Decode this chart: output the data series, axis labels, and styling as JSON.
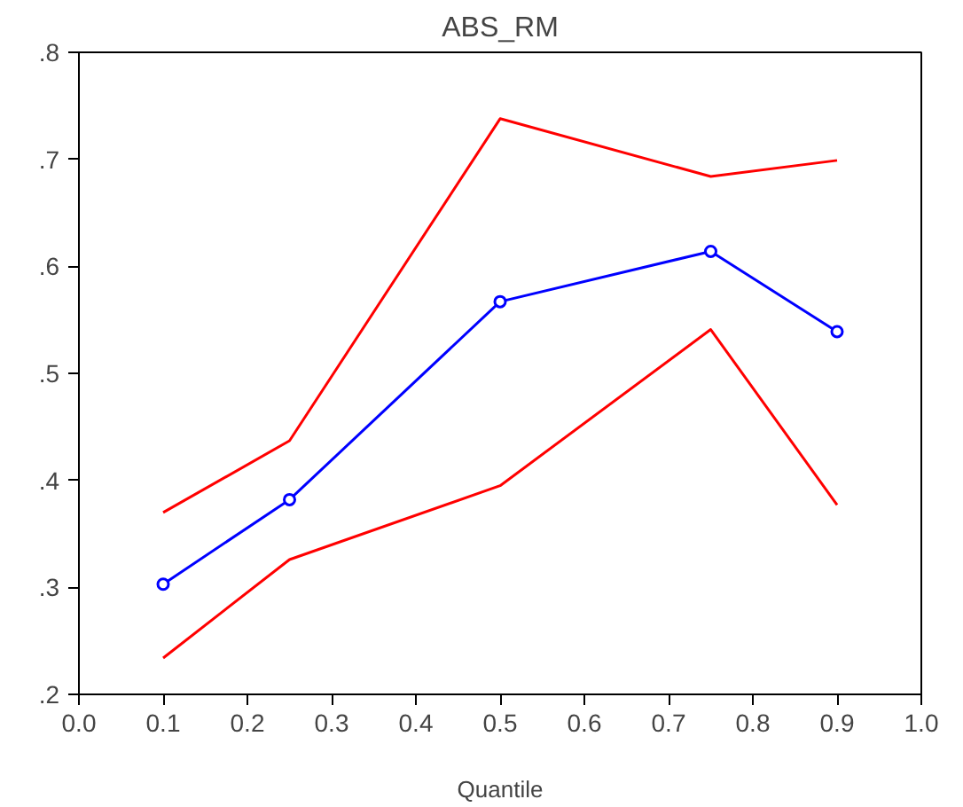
{
  "chart_data": {
    "type": "line",
    "title": "ABS_RM",
    "xlabel": "Quantile",
    "x": [
      0.1,
      0.25,
      0.5,
      0.75,
      0.9
    ],
    "series": [
      {
        "color": "#0000ff",
        "marker": "circle",
        "values": [
          0.303,
          0.382,
          0.567,
          0.614,
          0.539
        ]
      },
      {
        "color": "#ff0000",
        "marker": "none",
        "values": [
          0.37,
          0.437,
          0.738,
          0.684,
          0.699
        ]
      },
      {
        "color": "#ff0000",
        "marker": "none",
        "values": [
          0.234,
          0.326,
          0.395,
          0.541,
          0.377
        ]
      }
    ],
    "xlim": [
      0,
      1
    ],
    "ylim": [
      0.2,
      0.8
    ],
    "xticks": [
      {
        "value": 0,
        "label": "0.0"
      },
      {
        "value": 0.1,
        "label": "0.1"
      },
      {
        "value": 0.2,
        "label": "0.2"
      },
      {
        "value": 0.3,
        "label": "0.3"
      },
      {
        "value": 0.4,
        "label": "0.4"
      },
      {
        "value": 0.5,
        "label": "0.5"
      },
      {
        "value": 0.6,
        "label": "0.6"
      },
      {
        "value": 0.7,
        "label": "0.7"
      },
      {
        "value": 0.8,
        "label": "0.8"
      },
      {
        "value": 0.9,
        "label": "0.9"
      },
      {
        "value": 1,
        "label": "1.0"
      }
    ],
    "yticks": [
      {
        "value": 0.2,
        "label": ".2"
      },
      {
        "value": 0.3,
        "label": ".3"
      },
      {
        "value": 0.4,
        "label": ".4"
      },
      {
        "value": 0.5,
        "label": ".5"
      },
      {
        "value": 0.6,
        "label": ".6"
      },
      {
        "value": 0.7,
        "label": ".7"
      },
      {
        "value": 0.8,
        "label": ".8"
      }
    ],
    "grid": false
  }
}
